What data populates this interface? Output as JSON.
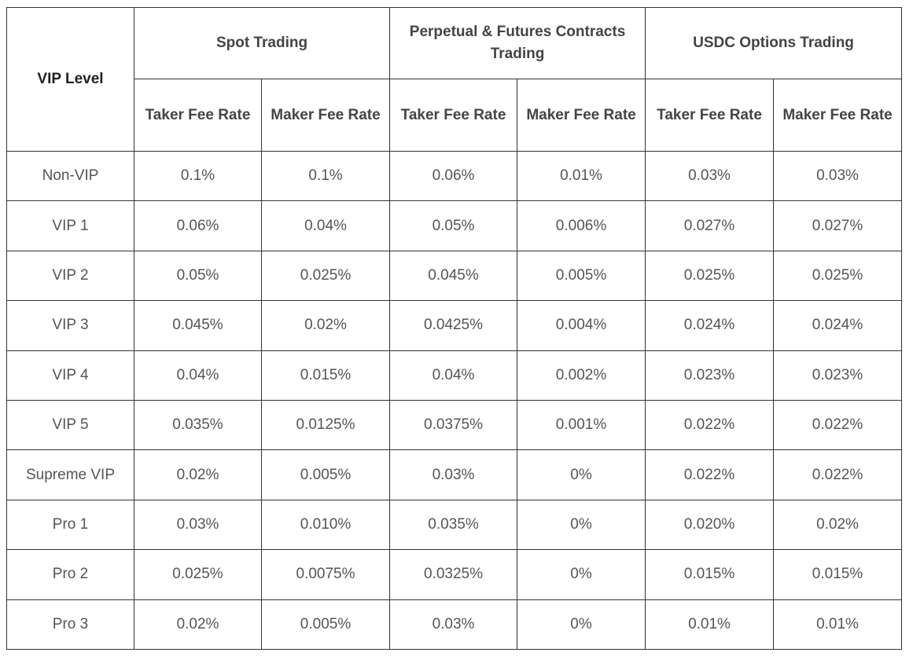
{
  "table": {
    "vip_level_header": "VIP Level",
    "groups": [
      {
        "title": "Spot Trading"
      },
      {
        "title": "Perpetual & Futures Contracts Trading"
      },
      {
        "title": "USDC Options Trading"
      }
    ],
    "sub_headers": [
      "Taker Fee Rate",
      "Maker Fee Rate",
      "Taker Fee Rate",
      "Maker Fee Rate",
      "Taker Fee Rate",
      "Maker Fee Rate"
    ],
    "rows": [
      {
        "level": "Non-VIP",
        "values": [
          "0.1%",
          "0.1%",
          "0.06%",
          "0.01%",
          "0.03%",
          "0.03%"
        ]
      },
      {
        "level": "VIP 1",
        "values": [
          "0.06%",
          "0.04%",
          "0.05%",
          "0.006%",
          "0.027%",
          "0.027%"
        ]
      },
      {
        "level": "VIP 2",
        "values": [
          "0.05%",
          "0.025%",
          "0.045%",
          "0.005%",
          "0.025%",
          "0.025%"
        ]
      },
      {
        "level": "VIP 3",
        "values": [
          "0.045%",
          "0.02%",
          "0.0425%",
          "0.004%",
          "0.024%",
          "0.024%"
        ]
      },
      {
        "level": "VIP 4",
        "values": [
          "0.04%",
          "0.015%",
          "0.04%",
          "0.002%",
          "0.023%",
          "0.023%"
        ]
      },
      {
        "level": "VIP 5",
        "values": [
          "0.035%",
          "0.0125%",
          "0.0375%",
          "0.001%",
          "0.022%",
          "0.022%"
        ]
      },
      {
        "level": "Supreme VIP",
        "values": [
          "0.02%",
          "0.005%",
          "0.03%",
          "0%",
          "0.022%",
          "0.022%"
        ]
      },
      {
        "level": "Pro 1",
        "values": [
          "0.03%",
          "0.010%",
          "0.035%",
          "0%",
          "0.020%",
          "0.02%"
        ]
      },
      {
        "level": "Pro 2",
        "values": [
          "0.025%",
          "0.0075%",
          "0.0325%",
          "0%",
          "0.015%",
          "0.015%"
        ]
      },
      {
        "level": "Pro 3",
        "values": [
          "0.02%",
          "0.005%",
          "0.03%",
          "0%",
          "0.01%",
          "0.01%"
        ]
      }
    ]
  }
}
